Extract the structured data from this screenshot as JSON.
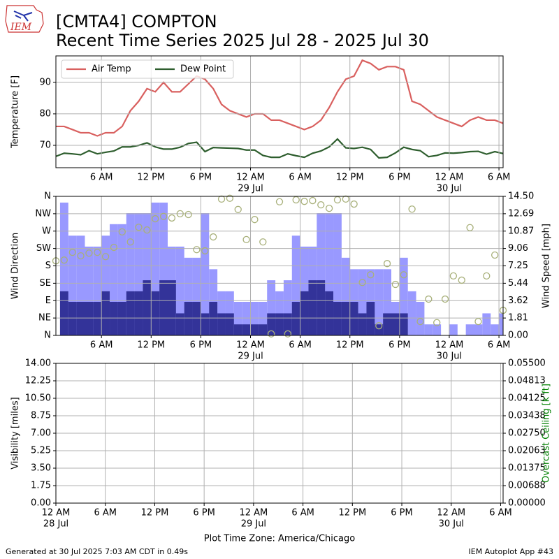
{
  "header": {
    "logo_text": "IEM",
    "title": "[CMTA4] COMPTON",
    "subtitle": "Recent Time Series 2025 Jul 28 - 2025 Jul 30"
  },
  "footer": {
    "left": "Generated at 30 Jul 2025 7:03 AM CDT in 0.49s",
    "right": "IEM Autoplot App #43"
  },
  "chart_data": [
    {
      "type": "line",
      "ylabel": "Temperature [F]",
      "legend": "upper left",
      "grid": true,
      "xlim": [
        0.5,
        54.5
      ],
      "ylim": [
        62.9,
        98.4
      ],
      "yticks": [
        70,
        80,
        90
      ],
      "xticks": [
        {
          "value": 6,
          "label": "6 AM"
        },
        {
          "value": 12,
          "label": "12 PM"
        },
        {
          "value": 18,
          "label": "6 PM"
        },
        {
          "value": 24,
          "label": "12 AM",
          "date": "29 Jul"
        },
        {
          "value": 30,
          "label": "6 AM"
        },
        {
          "value": 36,
          "label": "12 PM"
        },
        {
          "value": 42,
          "label": "6 PM"
        },
        {
          "value": 48,
          "label": "12 AM",
          "date": "30 Jul"
        },
        {
          "value": 54,
          "label": "6 AM"
        }
      ],
      "series": [
        {
          "name": "Air Temp",
          "color": "#d9605f",
          "style": "line",
          "x": [
            0.5,
            1.5,
            2.5,
            3.5,
            4.5,
            5.5,
            6.5,
            7.5,
            8.5,
            9.5,
            10.5,
            11.5,
            12.5,
            13.5,
            14.5,
            15.5,
            16.5,
            17.5,
            18.5,
            19.5,
            20.5,
            21.5,
            22.5,
            23.5,
            24.5,
            25.5,
            26.5,
            27.5,
            28.5,
            29.5,
            30.5,
            31.5,
            32.5,
            33.5,
            34.5,
            35.5,
            36.5,
            37.5,
            38.5,
            39.5,
            40.5,
            41.5,
            42.5,
            43.5,
            44.5,
            45.5,
            46.5,
            47.5,
            48.5,
            49.5,
            50.5,
            51.5,
            52.5,
            53.5,
            54.5
          ],
          "values": [
            76,
            76,
            75,
            74,
            74,
            73,
            74,
            74,
            76,
            81,
            84,
            88,
            87,
            90,
            87,
            87,
            89.5,
            92,
            91,
            88,
            83,
            81,
            80,
            79,
            80,
            80,
            78,
            78,
            77,
            76,
            75,
            76,
            78,
            82,
            87,
            91,
            92,
            97,
            96,
            94,
            95,
            95,
            94,
            84,
            83,
            81,
            79,
            78,
            77,
            76,
            78,
            79,
            78,
            78,
            77
          ]
        },
        {
          "name": "Dew Point",
          "color": "#2e5e2e",
          "style": "line",
          "x": [
            0.5,
            1.5,
            2.5,
            3.5,
            4.5,
            5.5,
            6.5,
            7.5,
            8.5,
            9.5,
            10.5,
            11.5,
            12.5,
            13.5,
            14.5,
            15.5,
            16.5,
            17.5,
            18.5,
            19.5,
            20.5,
            21.5,
            22.5,
            23.5,
            24.5,
            25.5,
            26.5,
            27.5,
            28.5,
            29.5,
            30.5,
            31.5,
            32.5,
            33.5,
            34.5,
            35.5,
            36.5,
            37.5,
            38.5,
            39.5,
            40.5,
            41.5,
            42.5,
            43.5,
            44.5,
            45.5,
            46.5,
            47.5,
            48.5,
            49.5,
            50.5,
            51.5,
            52.5,
            53.5,
            54.5
          ],
          "values": [
            66.5,
            67.5,
            67.3,
            67,
            68.3,
            67.3,
            67.8,
            68.2,
            69.5,
            69.5,
            70,
            70.8,
            69.5,
            68.8,
            68.8,
            69.4,
            70.6,
            71,
            68,
            69.3,
            69.2,
            69.1,
            69,
            68.5,
            68.5,
            66.8,
            66.2,
            66.2,
            67.3,
            66.7,
            66.2,
            67.5,
            68.2,
            69.5,
            72,
            69.2,
            69,
            69.4,
            68.7,
            66,
            66.2,
            67.6,
            69.4,
            68.7,
            68.3,
            66.4,
            66.8,
            67.6,
            67.5,
            67.7,
            68,
            68.1,
            67.2,
            68,
            67.4
          ]
        }
      ]
    },
    {
      "type": "bar",
      "ylabel": "Wind Direction",
      "y2label": "Wind Speed [mph]",
      "grid": true,
      "xlim": [
        0.5,
        54.5
      ],
      "ylim": [
        0,
        360
      ],
      "y2lim": [
        0,
        14.5
      ],
      "xticks": [
        {
          "value": 6,
          "label": "6 AM"
        },
        {
          "value": 12,
          "label": "12 PM"
        },
        {
          "value": 18,
          "label": "6 PM"
        },
        {
          "value": 24,
          "label": "12 AM",
          "date": "29 Jul"
        },
        {
          "value": 30,
          "label": "6 AM"
        },
        {
          "value": 36,
          "label": "12 PM"
        },
        {
          "value": 42,
          "label": "6 PM"
        },
        {
          "value": 48,
          "label": "12 AM",
          "date": "30 Jul"
        },
        {
          "value": 54,
          "label": "6 AM"
        }
      ],
      "yticks": [
        {
          "value": 0,
          "label": "N"
        },
        {
          "value": 45,
          "label": "NE"
        },
        {
          "value": 90,
          "label": "E"
        },
        {
          "value": 135,
          "label": "SE"
        },
        {
          "value": 180,
          "label": "S"
        },
        {
          "value": 225,
          "label": "SW"
        },
        {
          "value": 270,
          "label": "W"
        },
        {
          "value": 315,
          "label": "NW"
        },
        {
          "value": 360,
          "label": "N"
        }
      ],
      "y2ticks": [
        {
          "value": 0,
          "label": "0.00"
        },
        {
          "value": 1.8125,
          "label": "1.81"
        },
        {
          "value": 3.625,
          "label": "3.62"
        },
        {
          "value": 5.4375,
          "label": "5.44"
        },
        {
          "value": 7.25,
          "label": "7.25"
        },
        {
          "value": 9.0625,
          "label": "9.06"
        },
        {
          "value": 10.875,
          "label": "10.87"
        },
        {
          "value": 12.6875,
          "label": "12.69"
        },
        {
          "value": 14.5,
          "label": "14.50"
        }
      ],
      "series": [
        {
          "color": "#9999ff",
          "style": "step",
          "axis": "y2",
          "x": [
            1,
            2,
            3,
            4,
            5,
            6,
            7,
            8,
            9,
            10,
            11,
            12,
            13,
            14,
            15,
            16,
            17,
            18,
            19,
            20,
            21,
            22,
            23,
            24,
            25,
            26,
            27,
            28,
            29,
            30,
            31,
            32,
            33,
            34,
            35,
            36,
            37,
            38,
            39,
            40,
            41,
            42,
            43,
            44,
            45,
            46,
            47,
            48,
            49,
            50,
            51,
            52,
            53,
            54
          ],
          "values": [
            13.85,
            10.4,
            10.4,
            9.26,
            9.26,
            10.4,
            11.6,
            11.6,
            12.75,
            12.75,
            12.75,
            13.85,
            13.85,
            9.26,
            9.26,
            8.1,
            8.1,
            12.75,
            6.9,
            4.6,
            4.6,
            3.5,
            3.5,
            3.5,
            3.5,
            5.75,
            4.6,
            5.75,
            10.4,
            9.26,
            9.26,
            12.75,
            12.75,
            12.75,
            8.1,
            6.9,
            6.9,
            6.9,
            6.9,
            6.9,
            3.5,
            8.1,
            4.6,
            3.5,
            1.15,
            1.15,
            0,
            1.15,
            0,
            1.15,
            1.15,
            2.3,
            1.15,
            2.3
          ]
        },
        {
          "color": "#333399",
          "style": "step",
          "axis": "y2",
          "x": [
            1,
            2,
            3,
            4,
            5,
            6,
            7,
            8,
            9,
            10,
            11,
            12,
            13,
            14,
            15,
            16,
            17,
            18,
            19,
            20,
            21,
            22,
            23,
            24,
            25,
            26,
            27,
            28,
            29,
            30,
            31,
            32,
            33,
            34,
            35,
            36,
            37,
            38,
            39,
            40,
            41,
            42,
            43,
            44,
            45,
            46,
            47,
            48,
            49,
            50,
            51,
            52,
            53,
            54
          ],
          "values": [
            4.6,
            3.5,
            3.5,
            3.5,
            3.5,
            4.6,
            3.5,
            3.5,
            4.6,
            4.6,
            5.75,
            4.6,
            5.75,
            5.75,
            2.3,
            3.5,
            3.5,
            2.3,
            3.5,
            2.3,
            2.3,
            1.15,
            1.15,
            1.15,
            1.15,
            2.3,
            2.3,
            2.3,
            3.5,
            4.6,
            5.75,
            5.75,
            4.6,
            3.5,
            3.5,
            3.5,
            2.3,
            3.5,
            1.15,
            2.3,
            2.3,
            2.3,
            0,
            0,
            0,
            0,
            0,
            0,
            0,
            0,
            0,
            0,
            0,
            0
          ]
        },
        {
          "color": "#a8b07a",
          "style": "circle",
          "x": [
            0.5,
            1.5,
            2.5,
            3.5,
            4.5,
            5.5,
            6.5,
            7.5,
            8.5,
            9.5,
            10.5,
            11.5,
            12.5,
            13.5,
            14.5,
            15.5,
            16.5,
            17.5,
            18.5,
            19.5,
            20.5,
            21.5,
            22.5,
            23.5,
            24.5,
            25.5,
            26.5,
            27.5,
            28.5,
            29.5,
            30.5,
            31.5,
            32.5,
            33.5,
            34.5,
            35.5,
            36.5,
            37.5,
            38.5,
            39.5,
            40.5,
            41.5,
            42.5,
            43.5,
            44.5,
            45.5,
            46.5,
            47.5,
            48.5,
            49.5,
            50.5,
            51.5,
            52.5,
            53.5,
            54.5
          ],
          "values": [
            193,
            195,
            215,
            206,
            213,
            215,
            204,
            228,
            268,
            242,
            280,
            273,
            302,
            308,
            304,
            315,
            313,
            222,
            219,
            255,
            353,
            355,
            326,
            248,
            300,
            242,
            4,
            346,
            4,
            351,
            347,
            349,
            338,
            329,
            351,
            353,
            340,
            137,
            157,
            25,
            186,
            132,
            157,
            327,
            36,
            94,
            33,
            94,
            154,
            143,
            279,
            36,
            154,
            208,
            65
          ]
        }
      ]
    },
    {
      "type": "line",
      "ylabel": "Visibility [miles]",
      "y2label": "Overcast Ceiling [k ft]",
      "y2color": "green",
      "grid": true,
      "xlabel": "Plot Time Zone: America/Chicago",
      "xlim": [
        0,
        54.3
      ],
      "ylim": [
        0,
        14
      ],
      "y2lim": [
        0,
        0.055
      ],
      "xticks": [
        {
          "value": 0,
          "label": "12 AM",
          "date": "28 Jul"
        },
        {
          "value": 6,
          "label": "6 AM"
        },
        {
          "value": 12,
          "label": "12 PM"
        },
        {
          "value": 18,
          "label": "6 PM"
        },
        {
          "value": 24,
          "label": "12 AM",
          "date": "29 Jul"
        },
        {
          "value": 30,
          "label": "6 AM"
        },
        {
          "value": 36,
          "label": "12 PM"
        },
        {
          "value": 42,
          "label": "6 PM"
        },
        {
          "value": 48,
          "label": "12 AM",
          "date": "30 Jul"
        },
        {
          "value": 54,
          "label": "6 AM"
        }
      ],
      "yticks": [
        {
          "value": 0,
          "label": "0.00"
        },
        {
          "value": 1.75,
          "label": "1.75"
        },
        {
          "value": 3.5,
          "label": "3.50"
        },
        {
          "value": 5.25,
          "label": "5.25"
        },
        {
          "value": 7,
          "label": "7.00"
        },
        {
          "value": 8.75,
          "label": "8.75"
        },
        {
          "value": 10.5,
          "label": "10.50"
        },
        {
          "value": 12.25,
          "label": "12.25"
        },
        {
          "value": 14,
          "label": "14.00"
        }
      ],
      "y2ticks": [
        {
          "value": 0,
          "label": "0.00000"
        },
        {
          "value": 0.006875,
          "label": "0.00688"
        },
        {
          "value": 0.01375,
          "label": "0.01375"
        },
        {
          "value": 0.020625,
          "label": "0.02063"
        },
        {
          "value": 0.0275,
          "label": "0.02750"
        },
        {
          "value": 0.034375,
          "label": "0.03438"
        },
        {
          "value": 0.04125,
          "label": "0.04125"
        },
        {
          "value": 0.048125,
          "label": "0.04813"
        },
        {
          "value": 0.055,
          "label": "0.05500"
        }
      ],
      "series": []
    }
  ]
}
